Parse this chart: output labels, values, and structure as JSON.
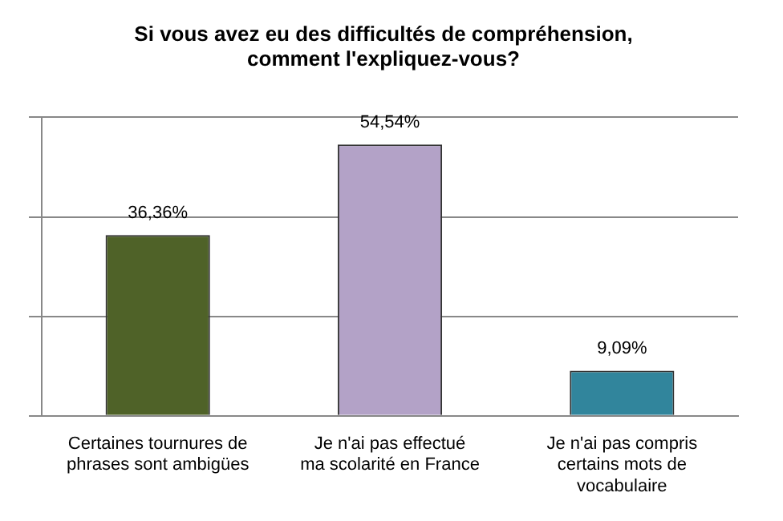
{
  "chart_data": {
    "type": "bar",
    "title": "Si vous avez eu des difficultés de compréhension, comment l'expliquez-vous?",
    "categories": [
      "Certaines tournures de phrases sont ambigües",
      "Je n'ai pas effectué ma scolarité en France",
      "Je n'ai pas compris certains mots de vocabulaire"
    ],
    "values": [
      36.36,
      54.54,
      9.09
    ],
    "colors": [
      "#4f6228",
      "#b3a2c7",
      "#31859c"
    ],
    "value_labels": [
      "36,36%",
      "54,54%",
      "9,09%"
    ],
    "ylim": [
      0,
      60
    ],
    "yticks": [
      {
        "value": 0,
        "label": null
      },
      {
        "value": 20,
        "label": null
      },
      {
        "value": 40,
        "label": null
      },
      {
        "value": 60,
        "label": null
      }
    ],
    "grid": "y",
    "tick_labels": "x",
    "legend": false
  }
}
